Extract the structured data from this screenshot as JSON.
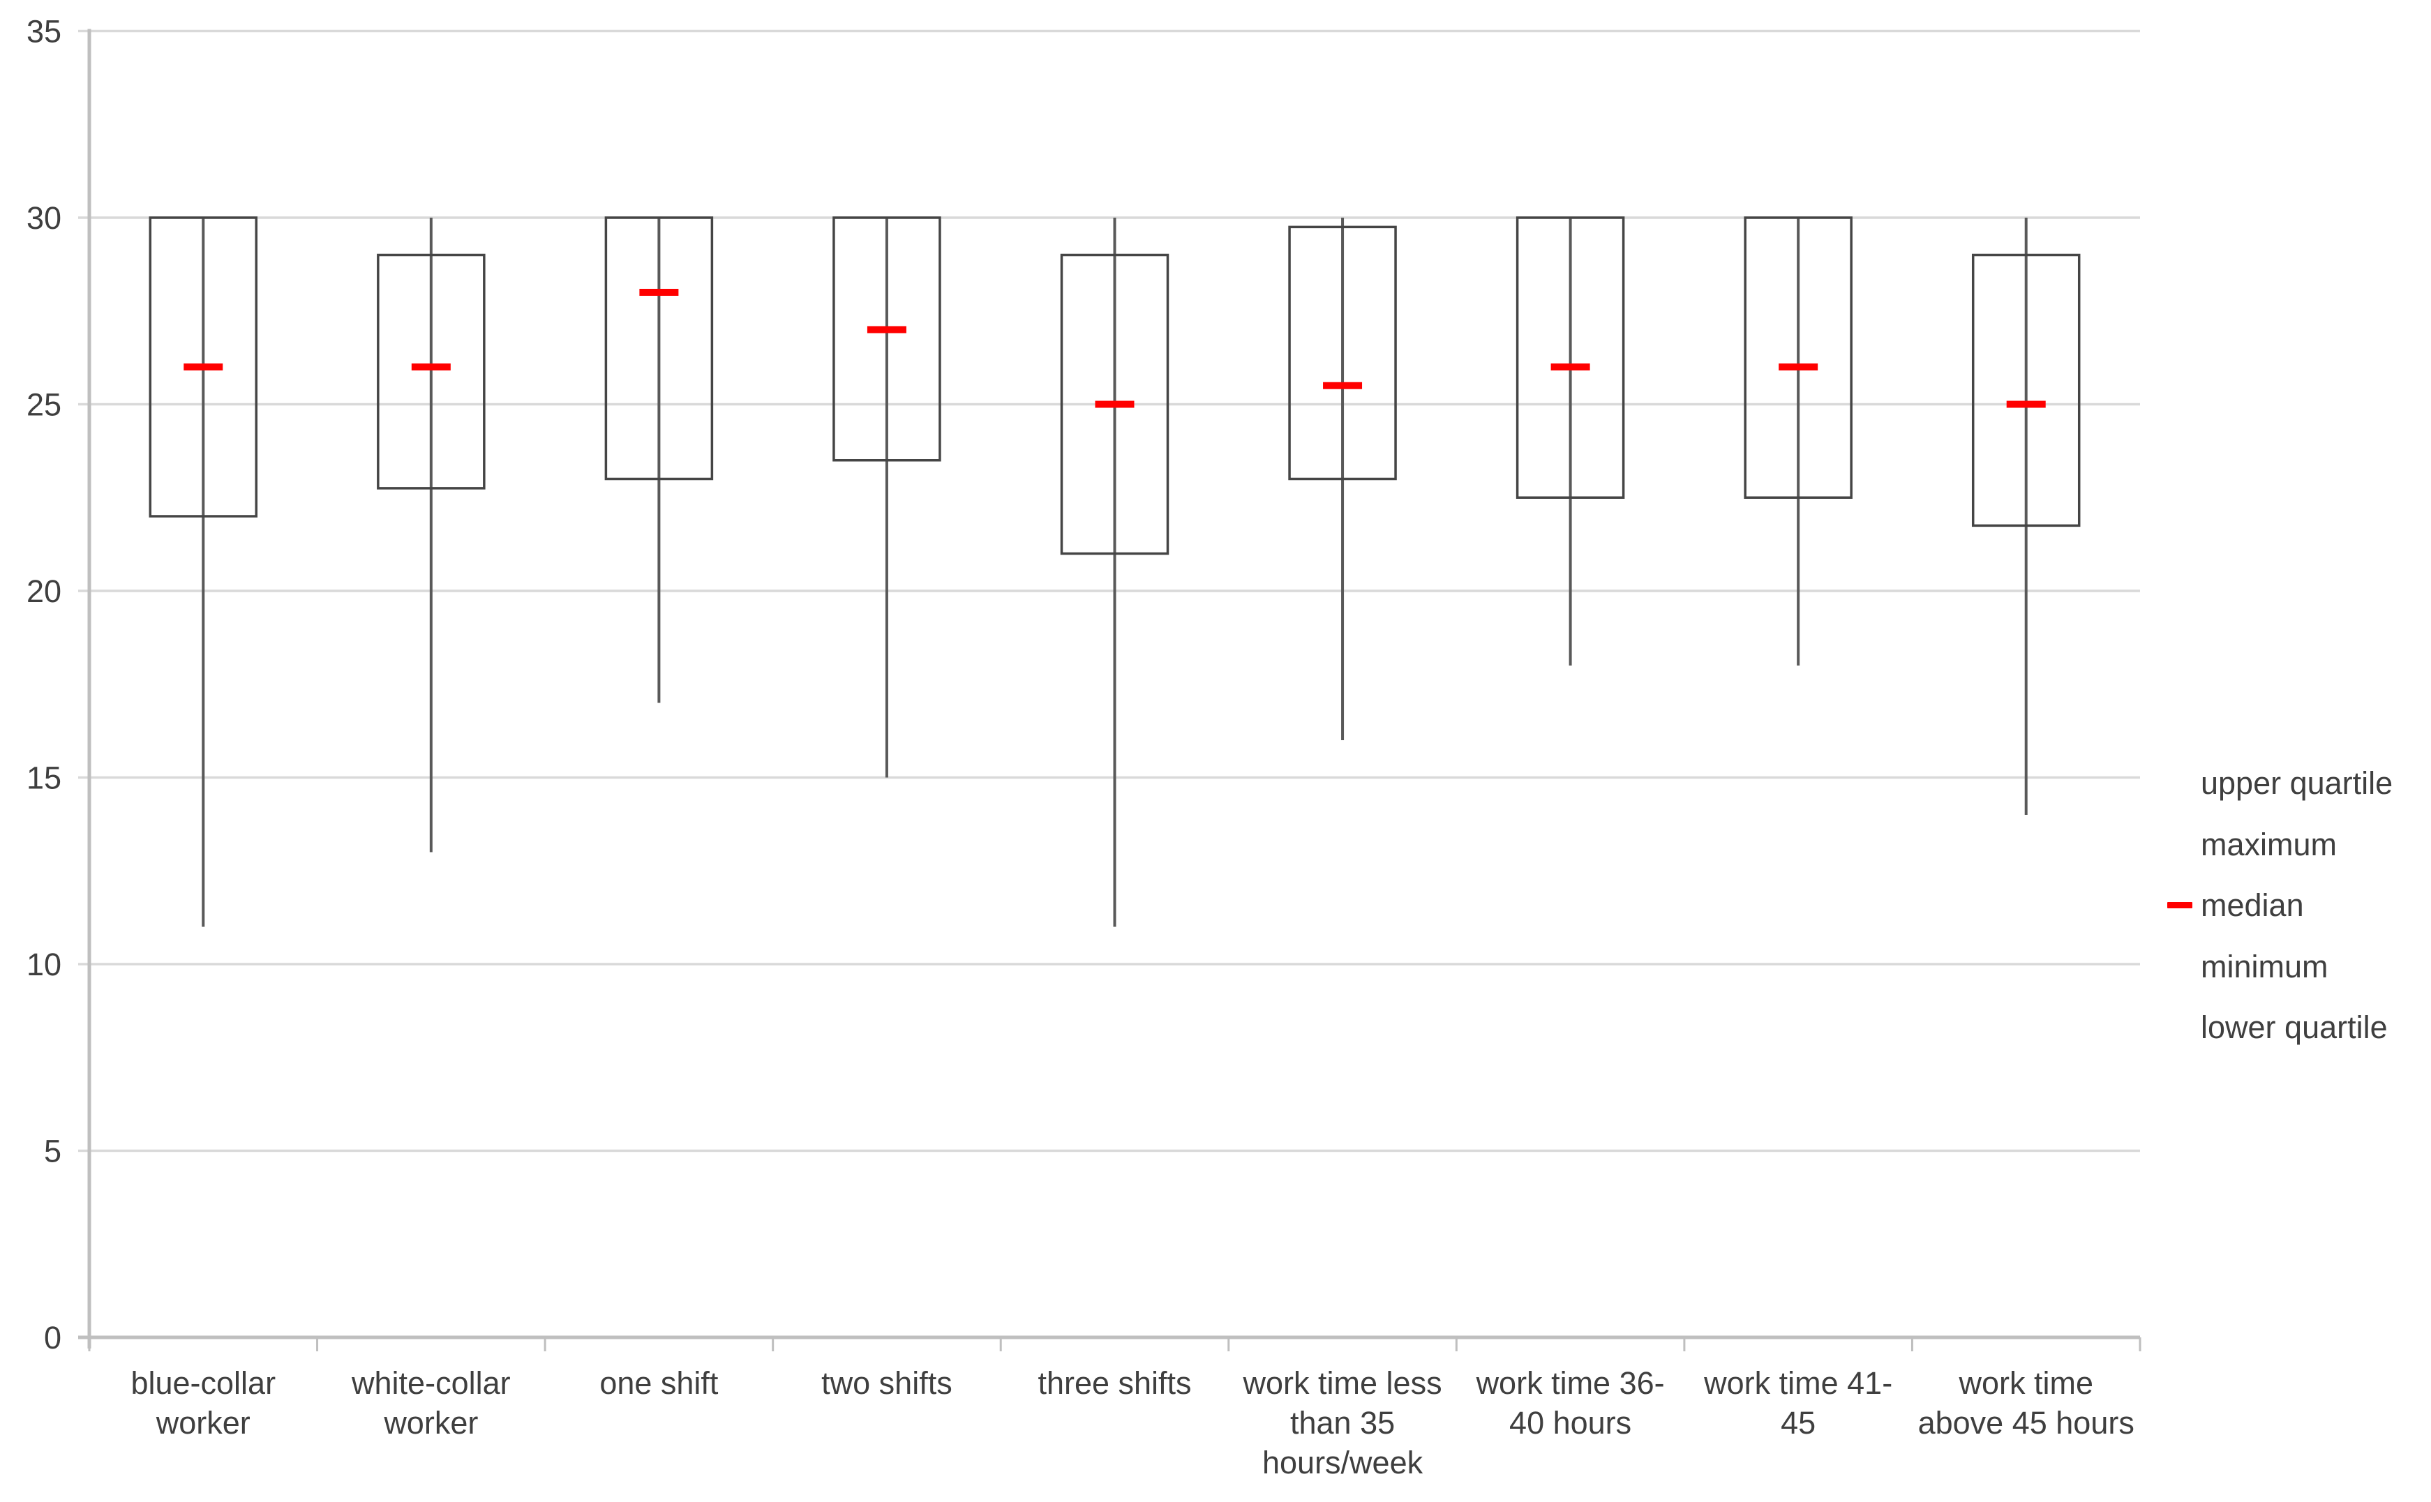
{
  "chart_data": {
    "type": "box",
    "title": "",
    "xlabel": "",
    "ylabel": "",
    "ylim": [
      0,
      35
    ],
    "yticks": [
      0,
      5,
      10,
      15,
      20,
      25,
      30,
      35
    ],
    "grid": true,
    "legend_position": "right",
    "legend": [
      {
        "label": "upper quartile",
        "marker": "none"
      },
      {
        "label": "maximum",
        "marker": "none"
      },
      {
        "label": "median",
        "marker": "red-dash"
      },
      {
        "label": "minimum",
        "marker": "none"
      },
      {
        "label": "lower quartile",
        "marker": "none"
      }
    ],
    "colors": {
      "median": "#ff0000",
      "box_stroke": "#454545",
      "whisker": "#595959",
      "gridline": "#d9d9d9",
      "axis": "#bfbfbf",
      "text": "#3f3f3f"
    },
    "categories": [
      {
        "label": "blue-collar worker",
        "lines": [
          "blue-collar",
          "worker"
        ],
        "min": 11,
        "lower_quartile": 22,
        "median": 26,
        "upper_quartile": 30,
        "max": 30
      },
      {
        "label": "white-collar worker",
        "lines": [
          "white-collar",
          "worker"
        ],
        "min": 13,
        "lower_quartile": 22.75,
        "median": 26,
        "upper_quartile": 29,
        "max": 30
      },
      {
        "label": "one shift",
        "lines": [
          "one shift"
        ],
        "min": 17,
        "lower_quartile": 23,
        "median": 28,
        "upper_quartile": 30,
        "max": 30
      },
      {
        "label": "two shifts",
        "lines": [
          "two shifts"
        ],
        "min": 15,
        "lower_quartile": 23.5,
        "median": 27,
        "upper_quartile": 30,
        "max": 30
      },
      {
        "label": "three shifts",
        "lines": [
          "three shifts"
        ],
        "min": 11,
        "lower_quartile": 21,
        "median": 25,
        "upper_quartile": 29,
        "max": 30
      },
      {
        "label": "work time less than 35 hours/week",
        "lines": [
          "work time less",
          "than 35",
          "hours/week"
        ],
        "min": 16,
        "lower_quartile": 23,
        "median": 25.5,
        "upper_quartile": 29.75,
        "max": 30
      },
      {
        "label": "work time 36-40 hours",
        "lines": [
          "work time 36-",
          "40 hours"
        ],
        "min": 18,
        "lower_quartile": 22.5,
        "median": 26,
        "upper_quartile": 30,
        "max": 30
      },
      {
        "label": "work time 41-45",
        "lines": [
          "work time 41-",
          "45"
        ],
        "min": 18,
        "lower_quartile": 22.5,
        "median": 26,
        "upper_quartile": 30,
        "max": 30
      },
      {
        "label": "work time above 45 hours",
        "lines": [
          "work time",
          "above 45 hours"
        ],
        "min": 14,
        "lower_quartile": 21.75,
        "median": 25,
        "upper_quartile": 29,
        "max": 30
      }
    ]
  }
}
